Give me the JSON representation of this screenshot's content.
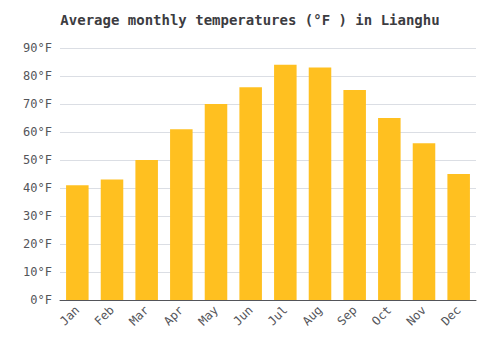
{
  "chart_data": {
    "type": "bar",
    "title": "Average monthly temperatures (°F ) in Lianghu",
    "categories": [
      "Jan",
      "Feb",
      "Mar",
      "Apr",
      "May",
      "Jun",
      "Jul",
      "Aug",
      "Sep",
      "Oct",
      "Nov",
      "Dec"
    ],
    "values": [
      41,
      43,
      50,
      61,
      70,
      76,
      84,
      83,
      75,
      65,
      56,
      45
    ],
    "color": "#FFC020",
    "ylim": [
      0,
      90
    ],
    "yticks": [
      {
        "value": 0,
        "label": "0°F"
      },
      {
        "value": 10,
        "label": "10°F"
      },
      {
        "value": 20,
        "label": "20°F"
      },
      {
        "value": 30,
        "label": "30°F"
      },
      {
        "value": 40,
        "label": "40°F"
      },
      {
        "value": 50,
        "label": "50°F"
      },
      {
        "value": 60,
        "label": "60°F"
      },
      {
        "value": 70,
        "label": "70°F"
      },
      {
        "value": 80,
        "label": "80°F"
      },
      {
        "value": 90,
        "label": "90°F"
      }
    ],
    "grid": true
  }
}
